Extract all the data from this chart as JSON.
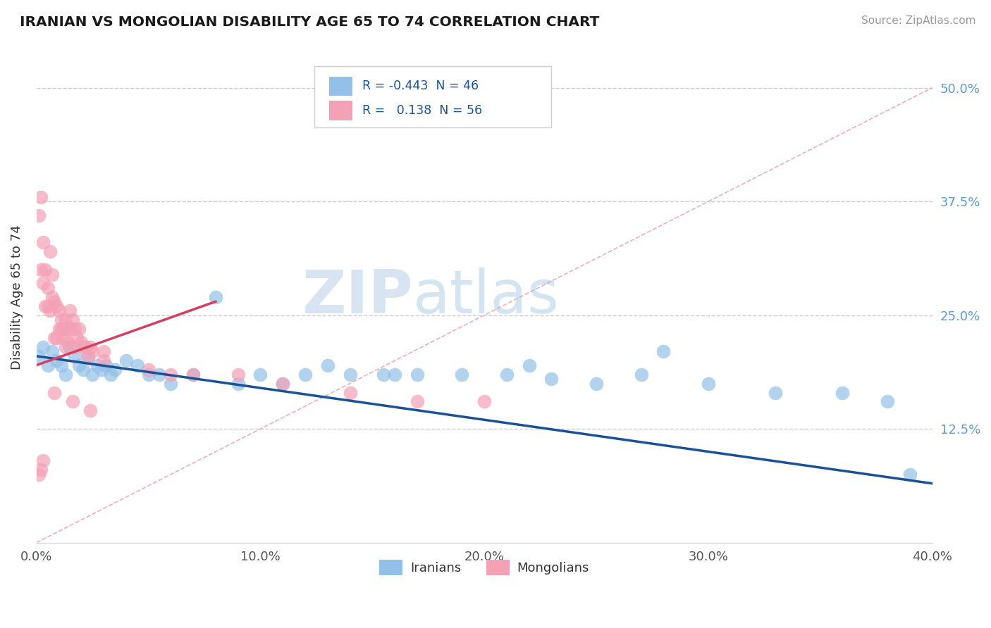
{
  "title": "IRANIAN VS MONGOLIAN DISABILITY AGE 65 TO 74 CORRELATION CHART",
  "source": "Source: ZipAtlas.com",
  "ylabel": "Disability Age 65 to 74",
  "xlim": [
    0.0,
    0.4
  ],
  "ylim": [
    0.0,
    0.54
  ],
  "xtick_labels": [
    "0.0%",
    "10.0%",
    "20.0%",
    "30.0%",
    "40.0%"
  ],
  "xtick_values": [
    0.0,
    0.1,
    0.2,
    0.3,
    0.4
  ],
  "ytick_labels": [
    "12.5%",
    "25.0%",
    "37.5%",
    "50.0%"
  ],
  "ytick_values": [
    0.125,
    0.25,
    0.375,
    0.5
  ],
  "legend_r_iranian": "-0.443",
  "legend_n_iranian": "46",
  "legend_r_mongolian": "0.138",
  "legend_n_mongolian": "56",
  "color_iranian": "#92c0e8",
  "color_mongolian": "#f4a0b5",
  "line_color_iranian": "#1a5296",
  "line_color_mongolian": "#d44060",
  "dash_line_color": "#e8a0b0",
  "watermark_zip": "ZIP",
  "watermark_atlas": "atlas",
  "background_color": "#ffffff",
  "iranian_line_x0": 0.0,
  "iranian_line_y0": 0.205,
  "iranian_line_x1": 0.4,
  "iranian_line_y1": 0.065,
  "mongolian_line_x0": 0.0,
  "mongolian_line_y0": 0.195,
  "mongolian_line_x1": 0.08,
  "mongolian_line_y1": 0.265,
  "iranians_x": [
    0.001,
    0.003,
    0.005,
    0.007,
    0.009,
    0.011,
    0.013,
    0.015,
    0.017,
    0.019,
    0.021,
    0.023,
    0.025,
    0.027,
    0.029,
    0.031,
    0.033,
    0.035,
    0.04,
    0.045,
    0.05,
    0.055,
    0.06,
    0.07,
    0.08,
    0.09,
    0.1,
    0.11,
    0.12,
    0.13,
    0.14,
    0.155,
    0.17,
    0.19,
    0.21,
    0.23,
    0.25,
    0.27,
    0.3,
    0.33,
    0.36,
    0.38,
    0.39,
    0.28,
    0.22,
    0.16
  ],
  "iranians_y": [
    0.205,
    0.215,
    0.195,
    0.21,
    0.2,
    0.195,
    0.185,
    0.215,
    0.205,
    0.195,
    0.19,
    0.205,
    0.185,
    0.195,
    0.19,
    0.195,
    0.185,
    0.19,
    0.2,
    0.195,
    0.185,
    0.185,
    0.175,
    0.185,
    0.27,
    0.175,
    0.185,
    0.175,
    0.185,
    0.195,
    0.185,
    0.185,
    0.185,
    0.185,
    0.185,
    0.18,
    0.175,
    0.185,
    0.175,
    0.165,
    0.165,
    0.155,
    0.075,
    0.21,
    0.195,
    0.185
  ],
  "mongolians_x": [
    0.001,
    0.002,
    0.003,
    0.004,
    0.005,
    0.006,
    0.007,
    0.008,
    0.009,
    0.01,
    0.011,
    0.012,
    0.013,
    0.014,
    0.015,
    0.016,
    0.017,
    0.018,
    0.019,
    0.02,
    0.021,
    0.022,
    0.023,
    0.024,
    0.025,
    0.003,
    0.005,
    0.007,
    0.009,
    0.011,
    0.013,
    0.015,
    0.017,
    0.002,
    0.004,
    0.006,
    0.008,
    0.01,
    0.012,
    0.014,
    0.03,
    0.05,
    0.07,
    0.09,
    0.11,
    0.14,
    0.17,
    0.2,
    0.03,
    0.06,
    0.008,
    0.016,
    0.024,
    0.001,
    0.002,
    0.003
  ],
  "mongolians_y": [
    0.36,
    0.38,
    0.33,
    0.3,
    0.28,
    0.32,
    0.27,
    0.265,
    0.26,
    0.255,
    0.245,
    0.235,
    0.245,
    0.235,
    0.255,
    0.245,
    0.235,
    0.225,
    0.235,
    0.22,
    0.215,
    0.215,
    0.205,
    0.215,
    0.21,
    0.285,
    0.26,
    0.295,
    0.225,
    0.235,
    0.215,
    0.235,
    0.215,
    0.3,
    0.26,
    0.255,
    0.225,
    0.235,
    0.225,
    0.22,
    0.2,
    0.19,
    0.185,
    0.185,
    0.175,
    0.165,
    0.155,
    0.155,
    0.21,
    0.185,
    0.165,
    0.155,
    0.145,
    0.075,
    0.08,
    0.09
  ]
}
